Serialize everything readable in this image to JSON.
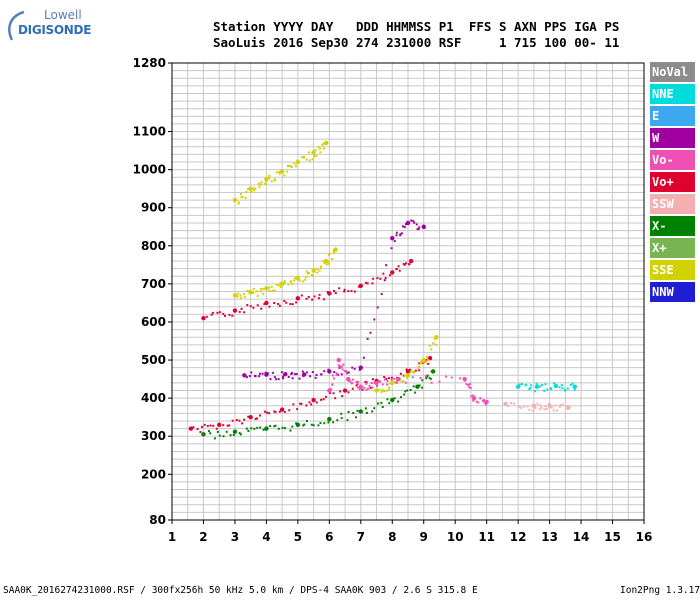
{
  "logo": {
    "line1": "Lowell",
    "line2": "DIGISONDE",
    "color": "#2f6fb5"
  },
  "header": {
    "line1": "Station YYYY DAY   DDD HHMMSS P1  FFS S AXN PPS IGA PS",
    "line2": "SaoLuis 2016 Sep30 274 231000 RSF     1 715 100 00- 11"
  },
  "footer": {
    "left": "SAA0K_2016274231000.RSF / 300fx256h 50 kHz 5.0 km / DPS-4 SAA0K 903 / 2.6 S 315.8 E",
    "right": "Ion2Png 1.3.17"
  },
  "legend": [
    {
      "label": "NoVal",
      "bg": "#8c8c8c",
      "fg": "#ffffff"
    },
    {
      "label": "NNE",
      "bg": "#00dcdc",
      "fg": "#ffffff"
    },
    {
      "label": "E",
      "bg": "#3ca8f0",
      "fg": "#ffffff"
    },
    {
      "label": "W",
      "bg": "#a000a0",
      "fg": "#ffffff"
    },
    {
      "label": "Vo-",
      "bg": "#f050b4",
      "fg": "#ffffff"
    },
    {
      "label": "Vo+",
      "bg": "#e00030",
      "fg": "#ffffff"
    },
    {
      "label": "SSW",
      "bg": "#f4b0b0",
      "fg": "#ffffff"
    },
    {
      "label": "X-",
      "bg": "#008000",
      "fg": "#ffffff"
    },
    {
      "label": "X+",
      "bg": "#78b450",
      "fg": "#ffffff"
    },
    {
      "label": "SSE",
      "bg": "#d2d200",
      "fg": "#ffffff"
    },
    {
      "label": "NNW",
      "bg": "#1e1ed2",
      "fg": "#ffffff"
    }
  ],
  "chart_data": {
    "type": "scatter",
    "title": "",
    "xlabel": "",
    "ylabel": "",
    "xlim": [
      1,
      16
    ],
    "ylim": [
      80,
      1280
    ],
    "x_ticks": [
      1,
      2,
      3,
      4,
      5,
      6,
      7,
      8,
      9,
      10,
      11,
      12,
      13,
      14,
      15,
      16
    ],
    "y_ticks": [
      80,
      200,
      300,
      400,
      500,
      600,
      700,
      800,
      900,
      1000,
      1100,
      1280
    ],
    "grid": true,
    "legend_placement": "right",
    "traces": [
      {
        "name": "SSE",
        "color": "#d2d200",
        "points": [
          [
            3.0,
            670
          ],
          [
            3.5,
            678
          ],
          [
            4.0,
            688
          ],
          [
            4.5,
            700
          ],
          [
            5.0,
            715
          ],
          [
            5.5,
            735
          ],
          [
            5.9,
            760
          ],
          [
            6.2,
            790
          ]
        ]
      },
      {
        "name": "Vo+",
        "color": "#e00030",
        "points": [
          [
            2.0,
            610
          ],
          [
            3.0,
            630
          ],
          [
            4.0,
            650
          ],
          [
            5.0,
            662
          ],
          [
            6.0,
            675
          ],
          [
            7.0,
            695
          ],
          [
            8.0,
            730
          ],
          [
            8.6,
            760
          ]
        ]
      },
      {
        "name": "SSE",
        "color": "#d2d200",
        "points": [
          [
            3.0,
            920
          ],
          [
            3.5,
            950
          ],
          [
            4.0,
            975
          ],
          [
            4.5,
            995
          ],
          [
            5.0,
            1020
          ],
          [
            5.5,
            1045
          ],
          [
            5.9,
            1070
          ]
        ]
      },
      {
        "name": "Vo+",
        "color": "#e00030",
        "points": [
          [
            1.6,
            320
          ],
          [
            2.5,
            330
          ],
          [
            3.5,
            350
          ],
          [
            4.5,
            370
          ],
          [
            5.5,
            395
          ],
          [
            6.5,
            420
          ],
          [
            7.5,
            445
          ],
          [
            8.5,
            470
          ],
          [
            9.2,
            505
          ]
        ]
      },
      {
        "name": "X-",
        "color": "#008000",
        "points": [
          [
            2.0,
            305
          ],
          [
            3.0,
            312
          ],
          [
            4.0,
            320
          ],
          [
            5.0,
            330
          ],
          [
            6.0,
            345
          ],
          [
            7.0,
            365
          ],
          [
            8.0,
            395
          ],
          [
            8.8,
            430
          ],
          [
            9.3,
            470
          ]
        ]
      },
      {
        "name": "SSE",
        "color": "#d2d200",
        "points": [
          [
            7.5,
            420
          ],
          [
            8.0,
            440
          ],
          [
            8.5,
            460
          ],
          [
            9.0,
            500
          ],
          [
            9.4,
            560
          ]
        ]
      },
      {
        "name": "W",
        "color": "#a000a0",
        "points": [
          [
            3.3,
            460
          ],
          [
            4.0,
            462
          ],
          [
            4.6,
            463
          ],
          [
            5.2,
            462
          ],
          [
            6.0,
            470
          ],
          [
            7.0,
            480
          ],
          [
            8.0,
            820
          ],
          [
            8.5,
            860
          ],
          [
            9.0,
            850
          ]
        ]
      },
      {
        "name": "Vo-",
        "color": "#f050b4",
        "points": [
          [
            6.0,
            420
          ],
          [
            6.3,
            500
          ],
          [
            6.6,
            450
          ],
          [
            7.0,
            430
          ],
          [
            7.5,
            440
          ],
          [
            8.2,
            450
          ],
          [
            10.3,
            450
          ],
          [
            10.6,
            400
          ],
          [
            11.0,
            390
          ]
        ]
      },
      {
        "name": "NNE",
        "color": "#00dcdc",
        "points": [
          [
            12.0,
            430
          ],
          [
            12.6,
            430
          ],
          [
            13.2,
            432
          ],
          [
            13.8,
            430
          ]
        ]
      },
      {
        "name": "SSW",
        "color": "#f4b0b0",
        "points": [
          [
            11.6,
            385
          ],
          [
            12.5,
            380
          ],
          [
            13.0,
            380
          ],
          [
            13.6,
            375
          ]
        ]
      }
    ]
  }
}
